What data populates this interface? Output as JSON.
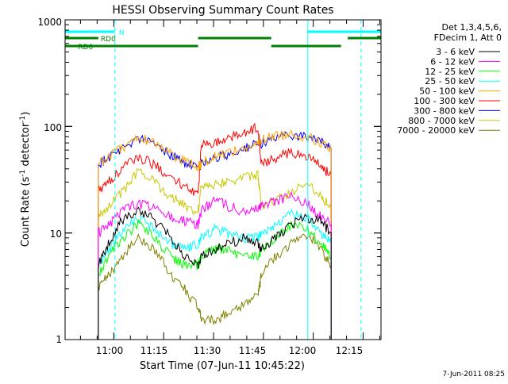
{
  "chart_data": {
    "type": "line",
    "title": "HESSI Observing Summary Count Rates",
    "xlabel": "Start Time (07-Jun-11 10:45:22)",
    "ylabel_main": "Count Rate (s",
    "ylabel_sup1": "-1",
    "ylabel_mid": " detector",
    "ylabel_sup2": "-1",
    "ylabel_end": ")",
    "yscale": "log",
    "ylim": [
      1,
      1000
    ],
    "xlim_minutes": [
      0,
      95
    ],
    "x_ticks": [
      "11:00",
      "11:15",
      "11:30",
      "11:45",
      "12:00",
      "12:15"
    ],
    "y_ticks": [
      "1",
      "10",
      "100",
      "1000"
    ],
    "legend_header": [
      "Det 1,3,4,5,6,",
      "FDecim 1, Att 0"
    ],
    "timestamp": "7-Jun-2011 08:25",
    "series": [
      {
        "name": "3 - 6 keV",
        "color": "#000000",
        "values": [
          5,
          8,
          13,
          17,
          13,
          9,
          6,
          5,
          6,
          7,
          8,
          9,
          8,
          7,
          9,
          12,
          14,
          13,
          10
        ]
      },
      {
        "name": "6 - 12 keV",
        "color": "#ff00ff",
        "values": [
          10,
          12,
          16,
          19,
          17,
          14,
          13,
          12,
          16,
          21,
          18,
          16,
          17,
          18,
          20,
          22,
          19,
          14,
          12
        ]
      },
      {
        "name": "12 - 25 keV",
        "color": "#00ff00",
        "values": [
          4,
          6,
          9,
          12,
          9,
          6,
          5,
          5,
          6,
          7,
          7,
          6,
          6,
          7,
          9,
          12,
          11,
          8,
          6
        ]
      },
      {
        "name": "25 - 50 keV",
        "color": "#00ffff",
        "values": [
          5,
          7,
          10,
          14,
          11,
          8,
          7,
          8,
          9,
          11,
          10,
          9,
          9,
          10,
          12,
          15,
          14,
          10,
          8
        ]
      },
      {
        "name": "50 - 100 keV",
        "color": "#ffa500",
        "values": [
          45,
          52,
          62,
          80,
          70,
          55,
          48,
          42,
          45,
          52,
          58,
          62,
          68,
          75,
          82,
          85,
          80,
          70,
          60
        ]
      },
      {
        "name": "100 - 300 keV",
        "color": "#ff0000",
        "values": [
          25,
          30,
          40,
          52,
          44,
          33,
          27,
          23,
          68,
          72,
          78,
          88,
          98,
          45,
          50,
          58,
          52,
          42,
          35
        ]
      },
      {
        "name": "300 - 800 keV",
        "color": "#0000ff",
        "values": [
          44,
          52,
          62,
          78,
          68,
          54,
          46,
          40,
          46,
          50,
          55,
          62,
          70,
          70,
          78,
          84,
          80,
          72,
          62
        ]
      },
      {
        "name": "800 - 7000 keV",
        "color": "#c8c800",
        "values": [
          14,
          18,
          24,
          38,
          30,
          22,
          18,
          16,
          28,
          29,
          31,
          33,
          35,
          18,
          20,
          24,
          30,
          22,
          18
        ]
      },
      {
        "name": "7000 - 20000 keV",
        "color": "#808000",
        "values": [
          3,
          4,
          6,
          9,
          7,
          4,
          3,
          2,
          1.6,
          1.5,
          1.8,
          2.2,
          2.6,
          4,
          6,
          8,
          10,
          7,
          5
        ]
      }
    ],
    "x_minutes": [
      10,
      13,
      17,
      22,
      27,
      32,
      36,
      40,
      41,
      45,
      49,
      54,
      58,
      59,
      63,
      68,
      73,
      77,
      80
    ],
    "segments": [
      {
        "label": "N",
        "color": "#00ffff",
        "row": "n",
        "ranges": [
          [
            0,
            15
          ],
          [
            73,
            95
          ]
        ]
      },
      {
        "label": "RD0",
        "color": "#008000",
        "row": "rd0",
        "ranges": [
          [
            0,
            10
          ],
          [
            40,
            62
          ],
          [
            85,
            95
          ]
        ]
      },
      {
        "label": "RD6",
        "color": "#008000",
        "row": "rd6",
        "ranges": [
          [
            0,
            40
          ],
          [
            62,
            83
          ]
        ]
      }
    ],
    "vlines_solid": [
      0,
      73
    ],
    "vlines_dashed": [
      15,
      89
    ],
    "grid": false
  }
}
